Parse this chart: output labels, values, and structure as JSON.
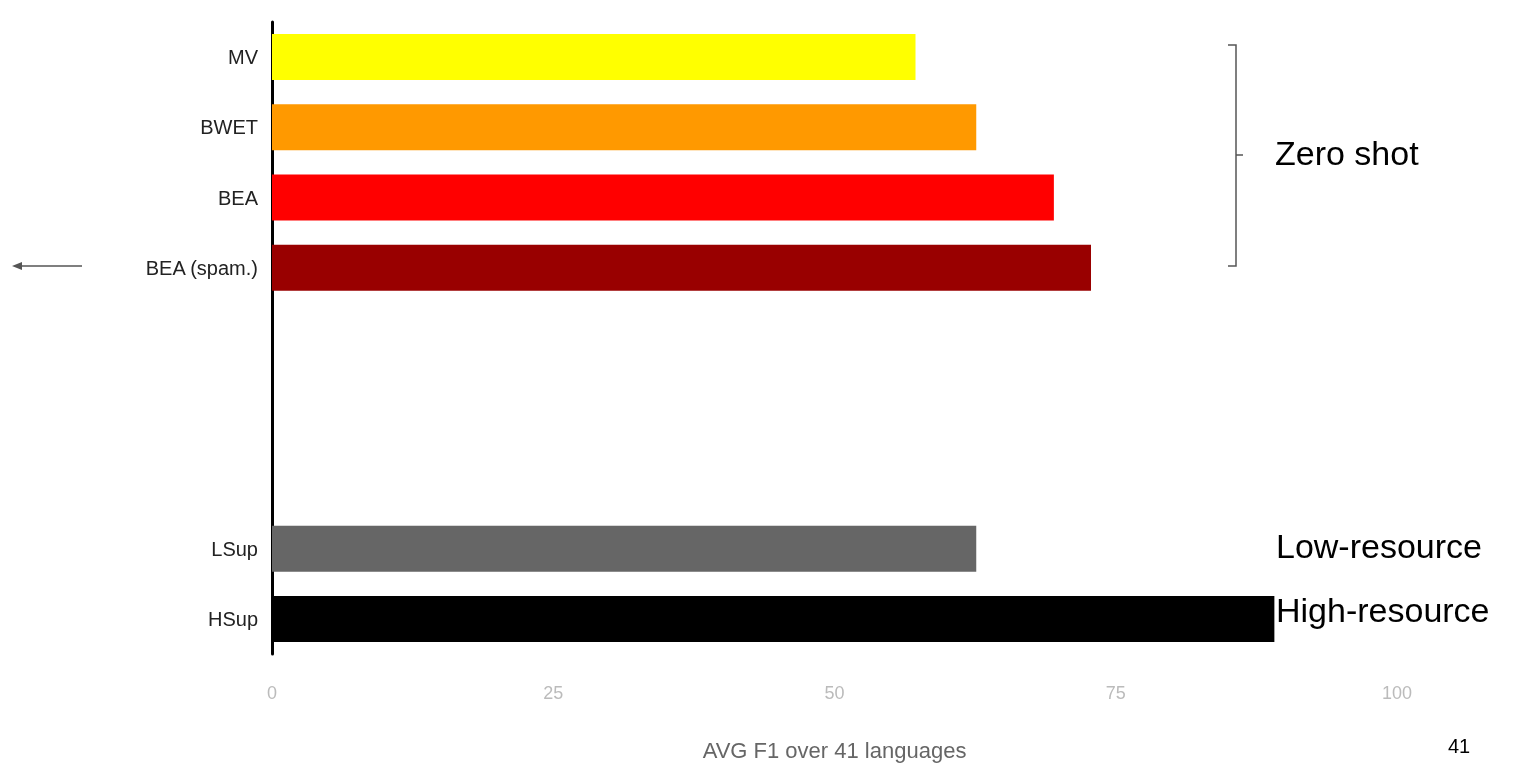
{
  "chart_data": {
    "type": "bar",
    "orientation": "horizontal",
    "xlabel": "AVG F1 over 41 languages",
    "categories": [
      "MV",
      "BWET",
      "BEA",
      "BEA (spam.)",
      null,
      null,
      null,
      "LSup",
      "HSup"
    ],
    "values": [
      57.2,
      62.6,
      69.5,
      72.8,
      null,
      null,
      null,
      62.6,
      89.1
    ],
    "colors": [
      "#ffff00",
      "#ff9900",
      "#ff0000",
      "#990000",
      null,
      null,
      null,
      "#666666",
      "#000000"
    ],
    "xlim": [
      0,
      100
    ],
    "xticks": [
      0,
      25,
      50,
      75,
      100
    ],
    "grid": false,
    "annotations": [
      "Zero shot",
      "Low-resource",
      "High-resource",
      "41"
    ]
  }
}
